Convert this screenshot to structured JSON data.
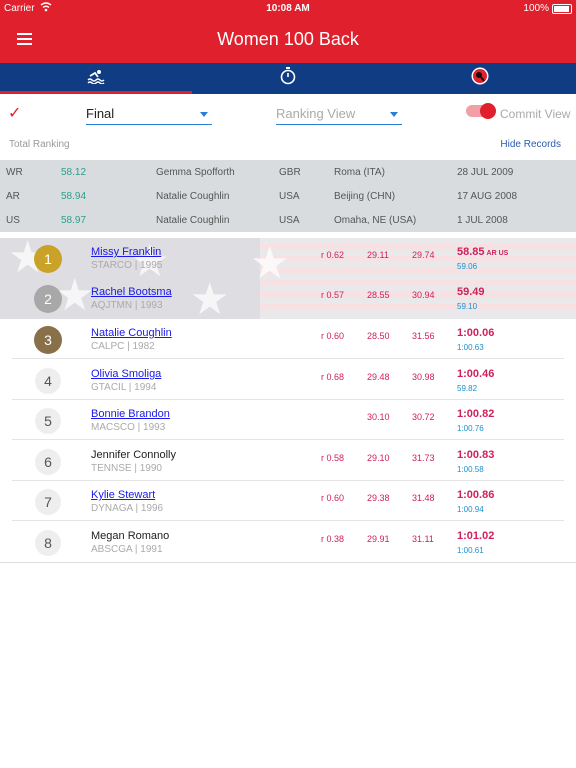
{
  "status": {
    "carrier": "Carrier",
    "time": "10:08 AM",
    "battery": "100%"
  },
  "nav": {
    "title": "Women 100 Back"
  },
  "tabs": [
    {
      "icon": "swimmer-icon"
    },
    {
      "icon": "stopwatch-icon"
    },
    {
      "icon": "badge-icon"
    }
  ],
  "controls": {
    "round": "Final",
    "view_placeholder": "Ranking View",
    "commit_label": "Commit View"
  },
  "total": {
    "label": "Total Ranking",
    "hide_label": "Hide Records"
  },
  "records": [
    {
      "code": "WR",
      "time": "58.12",
      "name": "Gemma Spofforth",
      "nation": "GBR",
      "place": "Roma (ITA)",
      "date": "28 JUL 2009"
    },
    {
      "code": "AR",
      "time": "58.94",
      "name": "Natalie Coughlin",
      "nation": "USA",
      "place": "Beijing (CHN)",
      "date": "17 AUG 2008"
    },
    {
      "code": "US",
      "time": "58.97",
      "name": "Natalie Coughlin",
      "nation": "USA",
      "place": "Omaha, NE (USA)",
      "date": "1 JUL 2008"
    }
  ],
  "results": [
    {
      "rank": "1",
      "name": "Missy Franklin",
      "club": "STARCO | 1995",
      "reaction": "r 0.62",
      "split1": "29.11",
      "split2": "29.74",
      "final": "58.85",
      "tag": "AR US",
      "sub": "59.06",
      "link": true
    },
    {
      "rank": "2",
      "name": "Rachel Bootsma",
      "club": "AQJTMN | 1993",
      "reaction": "r 0.57",
      "split1": "28.55",
      "split2": "30.94",
      "final": "59.49",
      "tag": "",
      "sub": "59.10",
      "link": true
    },
    {
      "rank": "3",
      "name": "Natalie Coughlin",
      "club": "CALPC | 1982",
      "reaction": "r 0.60",
      "split1": "28.50",
      "split2": "31.56",
      "final": "1:00.06",
      "tag": "",
      "sub": "1:00.63",
      "link": true
    },
    {
      "rank": "4",
      "name": "Olivia Smoliga",
      "club": "GTACIL | 1994",
      "reaction": "r 0.68",
      "split1": "29.48",
      "split2": "30.98",
      "final": "1:00.46",
      "tag": "",
      "sub": "59.82",
      "link": true
    },
    {
      "rank": "5",
      "name": "Bonnie Brandon",
      "club": "MACSCO | 1993",
      "reaction": "",
      "split1": "30.10",
      "split2": "30.72",
      "final": "1:00.82",
      "tag": "",
      "sub": "1:00.76",
      "link": true
    },
    {
      "rank": "6",
      "name": "Jennifer Connolly",
      "club": "TENNSE | 1990",
      "reaction": "r 0.58",
      "split1": "29.10",
      "split2": "31.73",
      "final": "1:00.83",
      "tag": "",
      "sub": "1:00.58",
      "link": false
    },
    {
      "rank": "7",
      "name": "Kylie Stewart",
      "club": "DYNAGA | 1996",
      "reaction": "r 0.60",
      "split1": "29.38",
      "split2": "31.48",
      "final": "1:00.86",
      "tag": "",
      "sub": "1:00.94",
      "link": true
    },
    {
      "rank": "8",
      "name": "Megan Romano",
      "club": "ABSCGA | 1991",
      "reaction": "r 0.38",
      "split1": "29.91",
      "split2": "31.11",
      "final": "1:01.02",
      "tag": "",
      "sub": "1:00.61",
      "link": false
    }
  ],
  "colors": {
    "brand_red": "#e0202c",
    "navy": "#0f3c82",
    "gold": "#c9a227",
    "silver": "#a8a8a8",
    "bronze": "#8a7048"
  }
}
